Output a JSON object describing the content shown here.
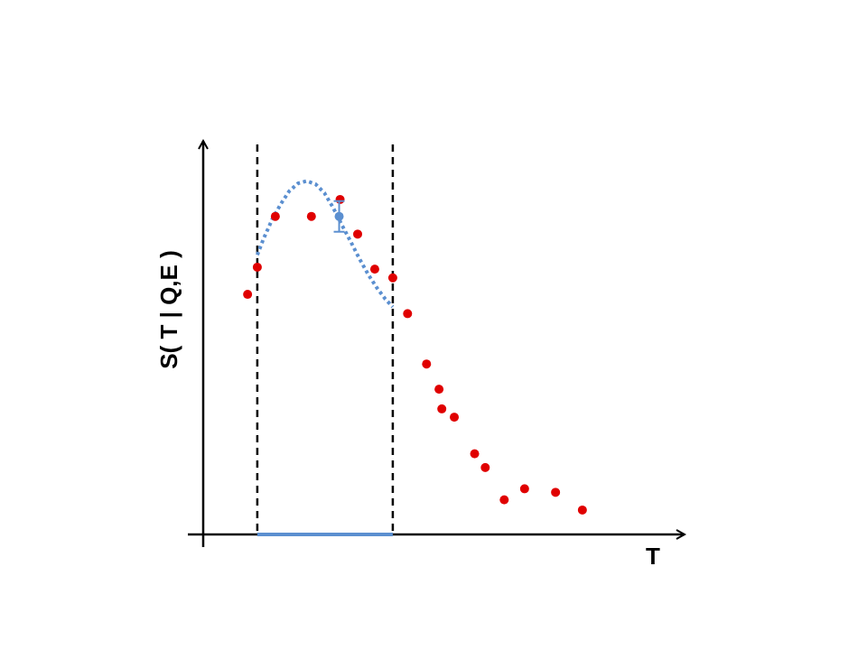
{
  "chart_data": {
    "type": "scatter",
    "title": "",
    "xlabel": "T",
    "ylabel": "S( T | Q,E )",
    "xlim": [
      0,
      100
    ],
    "ylim": [
      0,
      100
    ],
    "grid": false,
    "legend": "none",
    "window": {
      "x_start": 11.7,
      "x_end": 41.0
    },
    "series": [
      {
        "kind": "points",
        "color": "#e00000",
        "points": [
          [
            9.6,
            61.0
          ],
          [
            11.7,
            67.9
          ],
          [
            15.6,
            80.8
          ],
          [
            23.4,
            80.8
          ],
          [
            29.6,
            85.1
          ],
          [
            33.4,
            76.3
          ],
          [
            37.1,
            67.4
          ],
          [
            41.0,
            65.2
          ],
          [
            44.2,
            56.1
          ],
          [
            48.3,
            43.3
          ],
          [
            51.0,
            36.9
          ],
          [
            51.6,
            31.9
          ],
          [
            54.3,
            29.8
          ],
          [
            58.7,
            20.5
          ],
          [
            61.0,
            17.0
          ],
          [
            65.1,
            8.8
          ],
          [
            69.5,
            11.6
          ],
          [
            76.2,
            10.7
          ],
          [
            82.0,
            6.2
          ]
        ]
      },
      {
        "kind": "curve",
        "color": "#5b8fd0",
        "points": [
          [
            11.7,
            71.0
          ],
          [
            13.0,
            75.0
          ],
          [
            14.9,
            80.0
          ],
          [
            16.8,
            84.0
          ],
          [
            18.6,
            87.2
          ],
          [
            20.5,
            89.2
          ],
          [
            22.4,
            89.8
          ],
          [
            24.3,
            89.0
          ],
          [
            26.2,
            86.8
          ],
          [
            28.1,
            83.0
          ],
          [
            30.0,
            78.6
          ],
          [
            31.9,
            74.4
          ],
          [
            33.8,
            70.0
          ],
          [
            35.7,
            66.0
          ],
          [
            37.6,
            62.6
          ],
          [
            39.4,
            59.8
          ],
          [
            41.0,
            57.8
          ]
        ]
      },
      {
        "kind": "point_with_error",
        "color": "#5b8fd0",
        "x": 29.4,
        "y": 80.8,
        "yerr": 3.9
      }
    ]
  }
}
